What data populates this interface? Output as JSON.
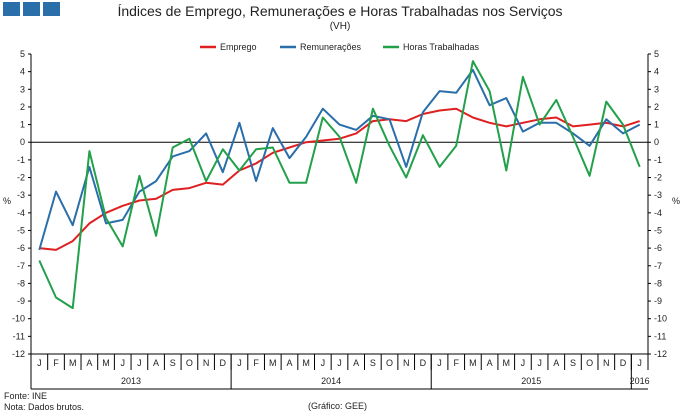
{
  "chart_data": {
    "type": "line",
    "title": "Índices de Emprego, Remunerações e Horas Trabalhadas nos Serviços",
    "subtitle": "(VH)",
    "ylabel": "%",
    "ylim": [
      -12,
      5
    ],
    "yticks": [
      5,
      4,
      3,
      2,
      1,
      0,
      -1,
      -2,
      -3,
      -4,
      -5,
      -6,
      -7,
      -8,
      -9,
      -10,
      -11,
      -12
    ],
    "month_labels": [
      "J",
      "F",
      "M",
      "A",
      "M",
      "J",
      "J",
      "A",
      "S",
      "O",
      "N",
      "D",
      "J",
      "F",
      "M",
      "A",
      "M",
      "J",
      "J",
      "A",
      "S",
      "O",
      "N",
      "D",
      "J",
      "F",
      "M",
      "A",
      "M",
      "J",
      "J",
      "A",
      "S",
      "O",
      "N",
      "D",
      "J"
    ],
    "years": [
      {
        "label": "2013",
        "start": 0,
        "count": 12
      },
      {
        "label": "2014",
        "start": 12,
        "count": 12
      },
      {
        "label": "2015",
        "start": 24,
        "count": 12
      },
      {
        "label": "2016",
        "start": 36,
        "count": 1
      }
    ],
    "series": [
      {
        "name": "Emprego",
        "color": "#e02020",
        "values": [
          -6.0,
          -6.1,
          -5.6,
          -4.6,
          -4.0,
          -3.6,
          -3.3,
          -3.2,
          -2.7,
          -2.6,
          -2.3,
          -2.4,
          -1.6,
          -1.2,
          -0.6,
          -0.3,
          0.0,
          0.1,
          0.2,
          0.5,
          1.2,
          1.3,
          1.2,
          1.6,
          1.8,
          1.9,
          1.4,
          1.1,
          0.9,
          1.1,
          1.3,
          1.4,
          0.9,
          1.0,
          1.1,
          0.9,
          1.2
        ]
      },
      {
        "name": "Remunerações",
        "color": "#2a6eaa",
        "values": [
          -6.1,
          -2.8,
          -4.7,
          -1.4,
          -4.6,
          -4.4,
          -2.8,
          -2.2,
          -0.8,
          -0.5,
          0.5,
          -1.7,
          1.1,
          -2.2,
          0.8,
          -0.9,
          0.3,
          1.9,
          1.0,
          0.7,
          1.5,
          1.3,
          -1.4,
          1.7,
          2.9,
          2.8,
          4.1,
          2.1,
          2.5,
          0.6,
          1.1,
          1.1,
          0.5,
          -0.2,
          1.3,
          0.5,
          1.0
        ]
      },
      {
        "name": "Horas Trabalhadas",
        "color": "#22a04a",
        "values": [
          -6.7,
          -8.8,
          -9.4,
          -0.5,
          -4.3,
          -5.9,
          -1.9,
          -5.3,
          -0.3,
          0.2,
          -2.2,
          -0.4,
          -1.6,
          -0.4,
          -0.3,
          -2.3,
          -2.3,
          1.4,
          0.3,
          -2.3,
          1.9,
          -0.2,
          -2.0,
          0.4,
          -1.4,
          -0.2,
          4.6,
          2.9,
          -1.6,
          3.7,
          1.0,
          2.4,
          0.3,
          -1.9,
          2.3,
          1.0,
          -1.4
        ]
      }
    ]
  },
  "footer": {
    "source": "Fonte: INE",
    "note": "Nota: Dados brutos.",
    "credit": "(Gráfico: GEE)"
  },
  "colors": {
    "logo": "#2a6eaa",
    "axis": "#000000"
  }
}
